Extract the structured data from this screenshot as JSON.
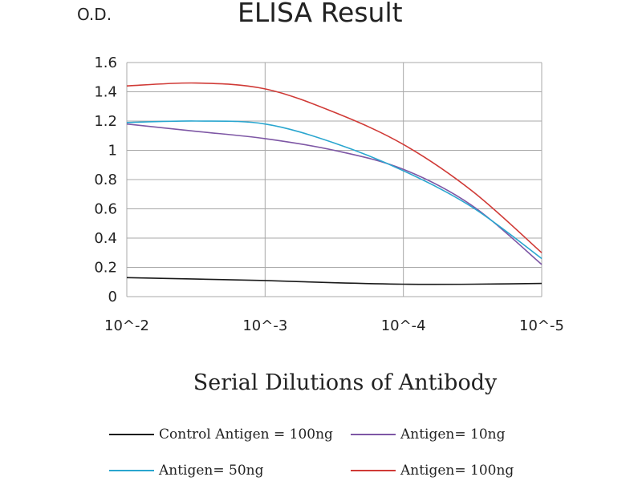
{
  "chart_data": {
    "type": "line",
    "title": "ELISA Result",
    "ylabel": "O.D.",
    "xlabel": "Serial Dilutions of Antibody",
    "x_categories": [
      "10^-2",
      "10^-3",
      "10^-4",
      "10^-5"
    ],
    "y_ticks": [
      "0",
      "0.2",
      "0.4",
      "0.6",
      "0.8",
      "1",
      "1.2",
      "1.4",
      "1.6"
    ],
    "ylim": [
      0,
      1.6
    ],
    "grid": true,
    "legend_position": "bottom",
    "series": [
      {
        "name": "Control Antigen = 100ng",
        "color": "#1a1a1a",
        "points": [
          [
            0,
            0.13
          ],
          [
            0.5,
            0.12
          ],
          [
            1,
            0.11
          ],
          [
            1.5,
            0.095
          ],
          [
            2,
            0.085
          ],
          [
            2.5,
            0.085
          ],
          [
            3,
            0.09
          ]
        ]
      },
      {
        "name": "Antigen= 10ng",
        "color": "#7e57a5",
        "points": [
          [
            0,
            1.18
          ],
          [
            0.5,
            1.13
          ],
          [
            1,
            1.08
          ],
          [
            1.5,
            1.0
          ],
          [
            2,
            0.87
          ],
          [
            2.5,
            0.62
          ],
          [
            3,
            0.22
          ]
        ]
      },
      {
        "name": "Antigen= 50ng",
        "color": "#2aa6cf",
        "points": [
          [
            0,
            1.19
          ],
          [
            0.5,
            1.2
          ],
          [
            1,
            1.18
          ],
          [
            1.5,
            1.05
          ],
          [
            2,
            0.86
          ],
          [
            2.5,
            0.61
          ],
          [
            3,
            0.26
          ]
        ]
      },
      {
        "name": "Antigen= 100ng",
        "color": "#d03a36",
        "points": [
          [
            0,
            1.44
          ],
          [
            0.5,
            1.46
          ],
          [
            1,
            1.42
          ],
          [
            1.5,
            1.26
          ],
          [
            2,
            1.04
          ],
          [
            2.5,
            0.72
          ],
          [
            3,
            0.3
          ]
        ]
      }
    ]
  }
}
